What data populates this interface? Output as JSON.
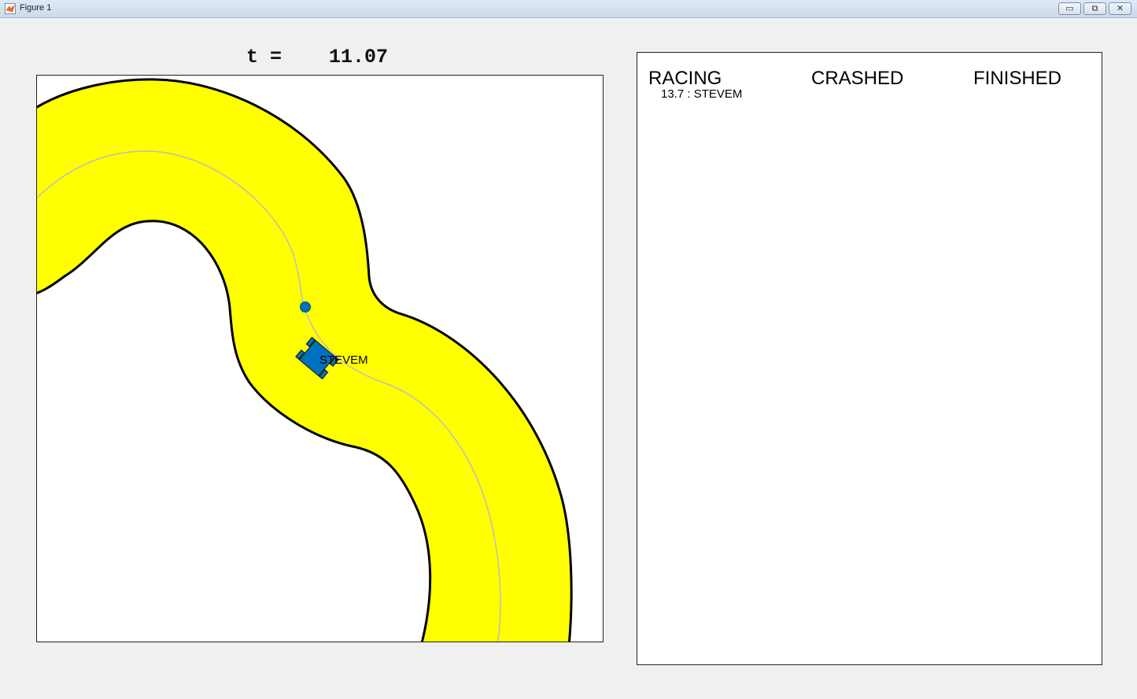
{
  "window": {
    "title": "Figure 1",
    "minimize_glyph": "▭",
    "maximize_glyph": "⧉",
    "close_glyph": "✕",
    "app_icon": "matlab-logo-icon"
  },
  "race": {
    "time_label": "t =    11.07",
    "car_name": "STEVEM"
  },
  "standings": {
    "racing_header": "RACING",
    "crashed_header": "CRASHED",
    "finished_header": "FINISHED",
    "racing_entries": [
      "13.7 : STEVEM"
    ]
  },
  "colors": {
    "track_fill": "#ffff00",
    "track_edge": "#000000",
    "centerline": "#bdbdbd",
    "car": "#0072bd",
    "background": "#f0f0f0"
  }
}
